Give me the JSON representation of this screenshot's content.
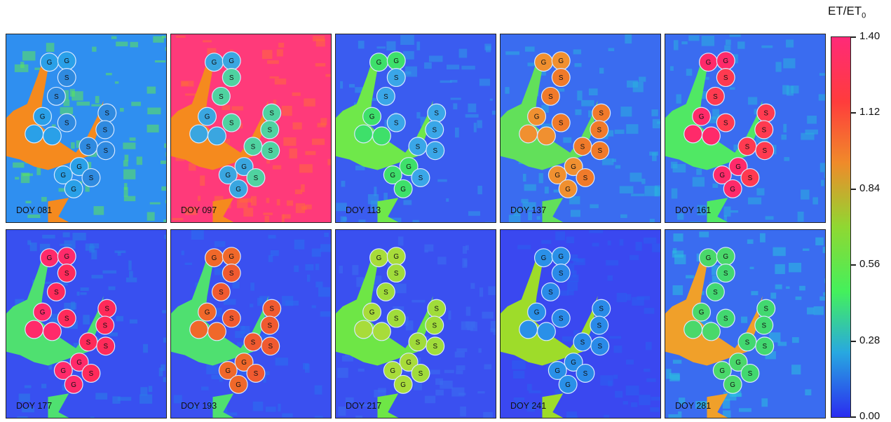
{
  "colorbar": {
    "title": "ET/ET",
    "title_sub": "0",
    "ticks": [
      "1.40",
      "1.12",
      "0.84",
      "0.56",
      "0.28",
      "0.00"
    ],
    "colors": [
      "#ff2a78",
      "#ff3c3c",
      "#f08a2a",
      "#8fd832",
      "#44f05c",
      "#28a8e0",
      "#2a2cf0"
    ]
  },
  "field_labels": {
    "grass": "G",
    "sand": "S"
  },
  "panels": [
    {
      "label": "DOY 081",
      "water_color": "#f58a1e",
      "bg_color": "#2f8ff0",
      "patch_color": "#5de85a",
      "g_color": "#2aa0e8",
      "s_color": "#2f8ae0"
    },
    {
      "label": "DOY 097",
      "water_color": "#f58a1e",
      "bg_color": "#ff3a7a",
      "patch_color": "#ff6a3c",
      "g_color": "#3aa6e0",
      "s_color": "#4fd2a0"
    },
    {
      "label": "DOY 113",
      "water_color": "#6fe84a",
      "bg_color": "#3a5cf0",
      "patch_color": "#2f9ae8",
      "g_color": "#3ee06a",
      "s_color": "#3aa6e8"
    },
    {
      "label": "DOY 137",
      "water_color": "#62e05a",
      "bg_color": "#3a6cf0",
      "patch_color": "#2ab0e0",
      "g_color": "#f09030",
      "s_color": "#f07a2a"
    },
    {
      "label": "DOY 161",
      "water_color": "#50e864",
      "bg_color": "#3a6cf0",
      "patch_color": "#2ab0e0",
      "g_color": "#ff2a6a",
      "s_color": "#ff3a50"
    },
    {
      "label": "DOY 177",
      "water_color": "#4fe070",
      "bg_color": "#3850f0",
      "patch_color": "#2a80e8",
      "g_color": "#ff2a6a",
      "s_color": "#ff2a5a"
    },
    {
      "label": "DOY 193",
      "water_color": "#4fe070",
      "bg_color": "#3a50f0",
      "patch_color": "#2a70f0",
      "g_color": "#f0682a",
      "s_color": "#f05a30"
    },
    {
      "label": "DOY 217",
      "water_color": "#6ee646",
      "bg_color": "#3a50f0",
      "patch_color": "#3a70f0",
      "g_color": "#a8dc3a",
      "s_color": "#a0dc3a"
    },
    {
      "label": "DOY 241",
      "water_color": "#9edc2a",
      "bg_color": "#3a48f0",
      "patch_color": "#2a60f0",
      "g_color": "#2a90e8",
      "s_color": "#2a8ae8"
    },
    {
      "label": "DOY 281",
      "water_color": "#f0a02a",
      "bg_color": "#3a6cf0",
      "patch_color": "#2ac0e0",
      "g_color": "#4ad86a",
      "s_color": "#42d870"
    }
  ]
}
